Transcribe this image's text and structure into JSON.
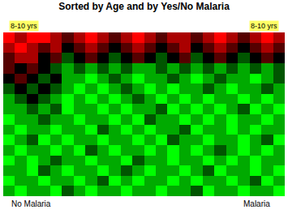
{
  "chart_data": {
    "type": "heatmap",
    "title": "Sorted by Age and by Yes/No Malaria",
    "annotations": [
      "8-10 yrs",
      "8-10 yrs",
      "No Malaria",
      "Malaria"
    ],
    "tick_labels": false,
    "grid": false,
    "cells": [
      [
        3,
        2,
        3,
        3,
        2,
        1,
        2,
        3,
        2,
        1,
        2,
        3,
        2,
        1,
        2,
        2,
        1,
        2,
        3,
        2,
        1,
        2,
        3,
        2
      ],
      [
        2,
        3,
        2,
        1,
        2,
        0,
        1,
        2,
        1,
        0,
        1,
        2,
        1,
        0,
        1,
        2,
        0,
        1,
        2,
        1,
        0,
        1,
        2,
        1
      ],
      [
        1,
        2,
        2,
        0,
        1,
        -1,
        0,
        1,
        0,
        -1,
        0,
        1,
        0,
        -1,
        0,
        1,
        -1,
        0,
        1,
        0,
        -1,
        0,
        1,
        0
      ],
      [
        1,
        0,
        1,
        0,
        -1,
        -2,
        -1,
        -2,
        -1,
        -2,
        -1,
        -2,
        -2,
        -1,
        -2,
        -1,
        -2,
        -1,
        -2,
        -1,
        -2,
        -1,
        -2,
        -1
      ],
      [
        0,
        1,
        0,
        -1,
        0,
        -2,
        -2,
        -3,
        -2,
        -1,
        -2,
        -3,
        -2,
        -2,
        -1,
        -2,
        -3,
        -2,
        -1,
        -2,
        -2,
        -3,
        -2,
        -1
      ],
      [
        -1,
        0,
        -1,
        0,
        -1,
        -2,
        -3,
        -2,
        -3,
        -2,
        -1,
        -2,
        -3,
        -2,
        -3,
        -2,
        -2,
        -1,
        -2,
        -3,
        -2,
        -2,
        -1,
        -2
      ],
      [
        -2,
        -1,
        0,
        -1,
        -2,
        -3,
        -2,
        -3,
        -2,
        -3,
        -2,
        -1,
        -2,
        -3,
        -2,
        -3,
        -2,
        -3,
        -2,
        -2,
        -3,
        -2,
        -3,
        -2
      ],
      [
        -2,
        -2,
        -1,
        -2,
        -1,
        -3,
        -2,
        -2,
        -3,
        -2,
        -3,
        -2,
        -2,
        -1,
        -3,
        -2,
        -3,
        -2,
        -3,
        -2,
        -1,
        -3,
        -2,
        -3
      ],
      [
        -3,
        -2,
        -2,
        -1,
        -2,
        -2,
        -3,
        -2,
        -2,
        -3,
        -2,
        -3,
        -1,
        -2,
        -2,
        -3,
        -2,
        -3,
        -2,
        -3,
        -2,
        -2,
        -3,
        -2
      ],
      [
        -2,
        -3,
        -2,
        -2,
        -3,
        -2,
        -2,
        -3,
        -1,
        -2,
        -3,
        -2,
        -3,
        -2,
        -2,
        -1,
        -3,
        -2,
        -2,
        -3,
        -2,
        -3,
        -2,
        -2
      ],
      [
        -3,
        -2,
        -1,
        -3,
        -2,
        -3,
        -2,
        -2,
        -3,
        -2,
        -2,
        -3,
        -2,
        -3,
        -1,
        -2,
        -2,
        -3,
        -2,
        -2,
        -3,
        -2,
        -1,
        -3
      ],
      [
        -2,
        -3,
        -2,
        -2,
        -3,
        -2,
        -3,
        -1,
        -2,
        -3,
        -2,
        -2,
        -3,
        -2,
        -3,
        -2,
        -3,
        -2,
        -1,
        -2,
        -3,
        -2,
        -3,
        -2
      ],
      [
        -3,
        -2,
        -3,
        -2,
        -1,
        -2,
        -2,
        -3,
        -2,
        -2,
        -3,
        -1,
        -2,
        -2,
        -3,
        -2,
        -2,
        -3,
        -2,
        -3,
        -2,
        -3,
        -2,
        -2
      ],
      [
        -2,
        -2,
        -3,
        -1,
        -2,
        -3,
        -2,
        -2,
        -3,
        -2,
        -1,
        -2,
        -3,
        -2,
        -2,
        -3,
        -2,
        -1,
        -3,
        -2,
        -2,
        -3,
        -2,
        -3
      ],
      [
        -3,
        -2,
        -2,
        -3,
        -2,
        -2,
        -3,
        -2,
        -1,
        -3,
        -2,
        -3,
        -2,
        -2,
        -3,
        -2,
        -3,
        -2,
        -2,
        -3,
        -2,
        -1,
        -3,
        -2
      ],
      [
        -2,
        -3,
        -2,
        -2,
        -3,
        -1,
        -2,
        -3,
        -2,
        -2,
        -3,
        -2,
        -2,
        -3,
        -2,
        -2,
        -1,
        -3,
        -2,
        -2,
        -3,
        -2,
        -2,
        -3
      ]
    ]
  }
}
